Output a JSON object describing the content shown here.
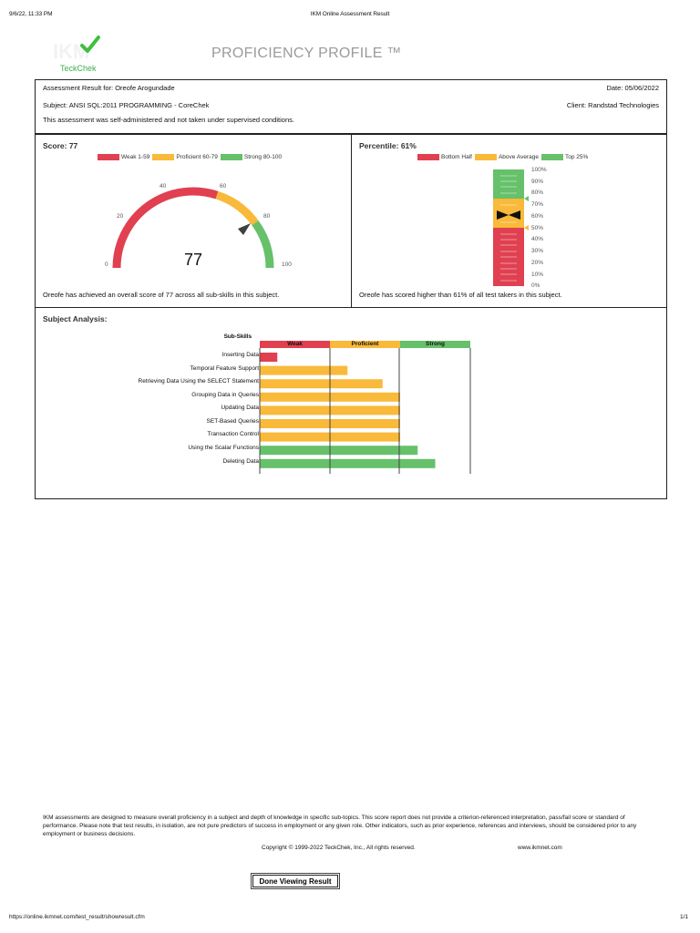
{
  "page_header": {
    "datetime": "9/6/22, 11:33 PM",
    "page_title": "IKM Online Assessment Result"
  },
  "logo": {
    "watermark": "IKM",
    "brand": "TeckChek",
    "check_color": "#3fbf3f"
  },
  "title": "PROFICIENCY PROFILE ™",
  "info": {
    "result_for": "Assessment Result for: Oreofe Arogundade",
    "subject": "Subject: ANSI SQL:2011 PROGRAMMING - CoreChek",
    "conditions": "This assessment was self-administered and not taken under supervised conditions.",
    "date": "Date: 05/06/2022",
    "client": "Client: Randstad Technologies"
  },
  "colors": {
    "weak": "#e04050",
    "proficient": "#f9b93a",
    "strong": "#66c16a",
    "needle": "#404040"
  },
  "score_panel": {
    "title": "Score: 77",
    "legend": [
      {
        "label": "Weak 1-59",
        "color": "#e04050"
      },
      {
        "label": "Proficient 60-79",
        "color": "#f9b93a"
      },
      {
        "label": "Strong 80-100",
        "color": "#66c16a"
      }
    ],
    "gauge": {
      "value": 77,
      "display": "77",
      "ticks": [
        "0",
        "20",
        "40",
        "60",
        "80",
        "100"
      ]
    },
    "caption": "Oreofe has achieved an overall score of 77 across all sub-skills in this subject."
  },
  "percentile_panel": {
    "title": "Percentile: 61%",
    "legend": [
      {
        "label": "Bottom Half",
        "color": "#e04050"
      },
      {
        "label": "Above Average",
        "color": "#f9b93a"
      },
      {
        "label": "Top 25%",
        "color": "#66c16a"
      }
    ],
    "value": 61,
    "ticks": [
      "100%",
      "90%",
      "80%",
      "70%",
      "60%",
      "50%",
      "40%",
      "30%",
      "20%",
      "10%",
      "0%"
    ],
    "caption": "Oreofe has scored higher than 61% of all test takers in this subject."
  },
  "subject_analysis": {
    "title": "Subject Analysis:",
    "axis_label": "Sub-Skills",
    "bands": [
      {
        "label": "Weak",
        "color": "#e04050"
      },
      {
        "label": "Proficient",
        "color": "#f9b93a"
      },
      {
        "label": "Strong",
        "color": "#66c16a"
      }
    ]
  },
  "chart_data": {
    "type": "bar",
    "orientation": "horizontal",
    "title": "Subject Analysis",
    "ylabel": "Sub-Skills",
    "x_bands": [
      "Weak",
      "Proficient",
      "Strong"
    ],
    "x_scale_note": "bar length in band units (0-3); each band equal width",
    "categories": [
      "Inserting Data",
      "Temporal Feature Support",
      "Retrieving Data Using the SELECT Statement",
      "Grouping Data in Queries",
      "Updating Data",
      "SET-Based Queries",
      "Transaction Control",
      "Using the Scalar Functions",
      "Deleting Data"
    ],
    "values": [
      0.25,
      1.25,
      1.75,
      2.0,
      2.0,
      2.0,
      2.0,
      2.25,
      2.5
    ],
    "levels": [
      "Weak",
      "Proficient",
      "Proficient",
      "Proficient",
      "Proficient",
      "Proficient",
      "Proficient",
      "Strong",
      "Strong"
    ],
    "xlim": [
      0,
      3
    ]
  },
  "footer": {
    "disclaimer": "IKM assessments are designed to measure overall proficiency in a subject and depth of knowledge in specific sub-topics. This score report does not provide a criterion-referenced interpretation, pass/fail score or standard of performance. Please note that test results, in isolation, are not pure predictors of success in employment or any given role. Other indicators, such as prior experience, references and interviews, should be considered prior to any employment or business decisions.",
    "copyright": "Copyright © 1999-2022 TeckChek, Inc., All rights reserved.",
    "website": "www.ikmnet.com",
    "done_button": "Done Viewing Result"
  },
  "page_footer": {
    "url": "https://online.ikmnet.com/test_result/showresult.cfm",
    "page": "1/1"
  }
}
